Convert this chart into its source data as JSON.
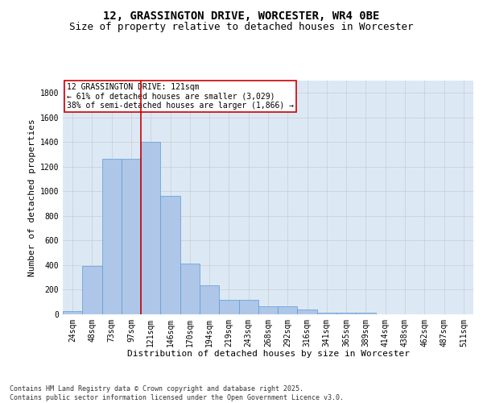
{
  "title_line1": "12, GRASSINGTON DRIVE, WORCESTER, WR4 0BE",
  "title_line2": "Size of property relative to detached houses in Worcester",
  "xlabel": "Distribution of detached houses by size in Worcester",
  "ylabel": "Number of detached properties",
  "categories": [
    "24sqm",
    "48sqm",
    "73sqm",
    "97sqm",
    "121sqm",
    "146sqm",
    "170sqm",
    "194sqm",
    "219sqm",
    "243sqm",
    "268sqm",
    "292sqm",
    "316sqm",
    "341sqm",
    "365sqm",
    "389sqm",
    "414sqm",
    "438sqm",
    "462sqm",
    "487sqm",
    "511sqm"
  ],
  "values": [
    25,
    390,
    1265,
    1265,
    1400,
    960,
    415,
    235,
    120,
    120,
    65,
    65,
    42,
    15,
    15,
    10,
    0,
    0,
    0,
    0,
    0
  ],
  "bar_color": "#aec6e8",
  "bar_edge_color": "#5b9bd5",
  "vline_color": "#cc0000",
  "vline_x_idx": 4,
  "annotation_text": "12 GRASSINGTON DRIVE: 121sqm\n← 61% of detached houses are smaller (3,029)\n38% of semi-detached houses are larger (1,866) →",
  "annotation_box_color": "#cc0000",
  "annotation_bg": "#ffffff",
  "ylim": [
    0,
    1900
  ],
  "yticks": [
    0,
    200,
    400,
    600,
    800,
    1000,
    1200,
    1400,
    1600,
    1800
  ],
  "grid_color": "#cccccc",
  "bg_color": "#dce9f5",
  "footnote": "Contains HM Land Registry data © Crown copyright and database right 2025.\nContains public sector information licensed under the Open Government Licence v3.0.",
  "title_fontsize": 10,
  "subtitle_fontsize": 9,
  "axis_label_fontsize": 8,
  "tick_fontsize": 7,
  "annotation_fontsize": 7,
  "footnote_fontsize": 6
}
